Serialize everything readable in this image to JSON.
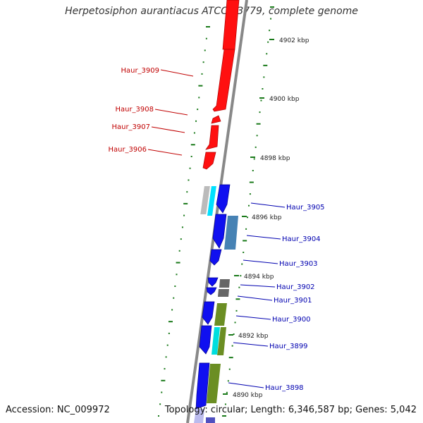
{
  "title": "Herpetosiphon aurantiacus ATCC 23779, complete genome",
  "accession": "Accession: NC_009972",
  "topology_line": "Topology: circular; Length: 6,346,587 bp; Genes: 5,042",
  "colors": {
    "red_strand": "#ff1010",
    "blue_strand": "#0a0af0",
    "backbone": "#888888",
    "tick": "#1a7a1a",
    "label_red": "#c00000",
    "label_blue": "#0000b0"
  },
  "scale_labels": [
    "4902 kbp",
    "4900 kbp",
    "4898 kbp",
    "4896 kbp",
    "4894 kbp",
    "4892 kbp",
    "4890 kbp"
  ],
  "genes_red": [
    "Haur_3909",
    "Haur_3908",
    "Haur_3907",
    "Haur_3906"
  ],
  "genes_blue": [
    "Haur_3905",
    "Haur_3904",
    "Haur_3903",
    "Haur_3902",
    "Haur_3901",
    "Haur_3900",
    "Haur_3899",
    "Haur_3898"
  ]
}
